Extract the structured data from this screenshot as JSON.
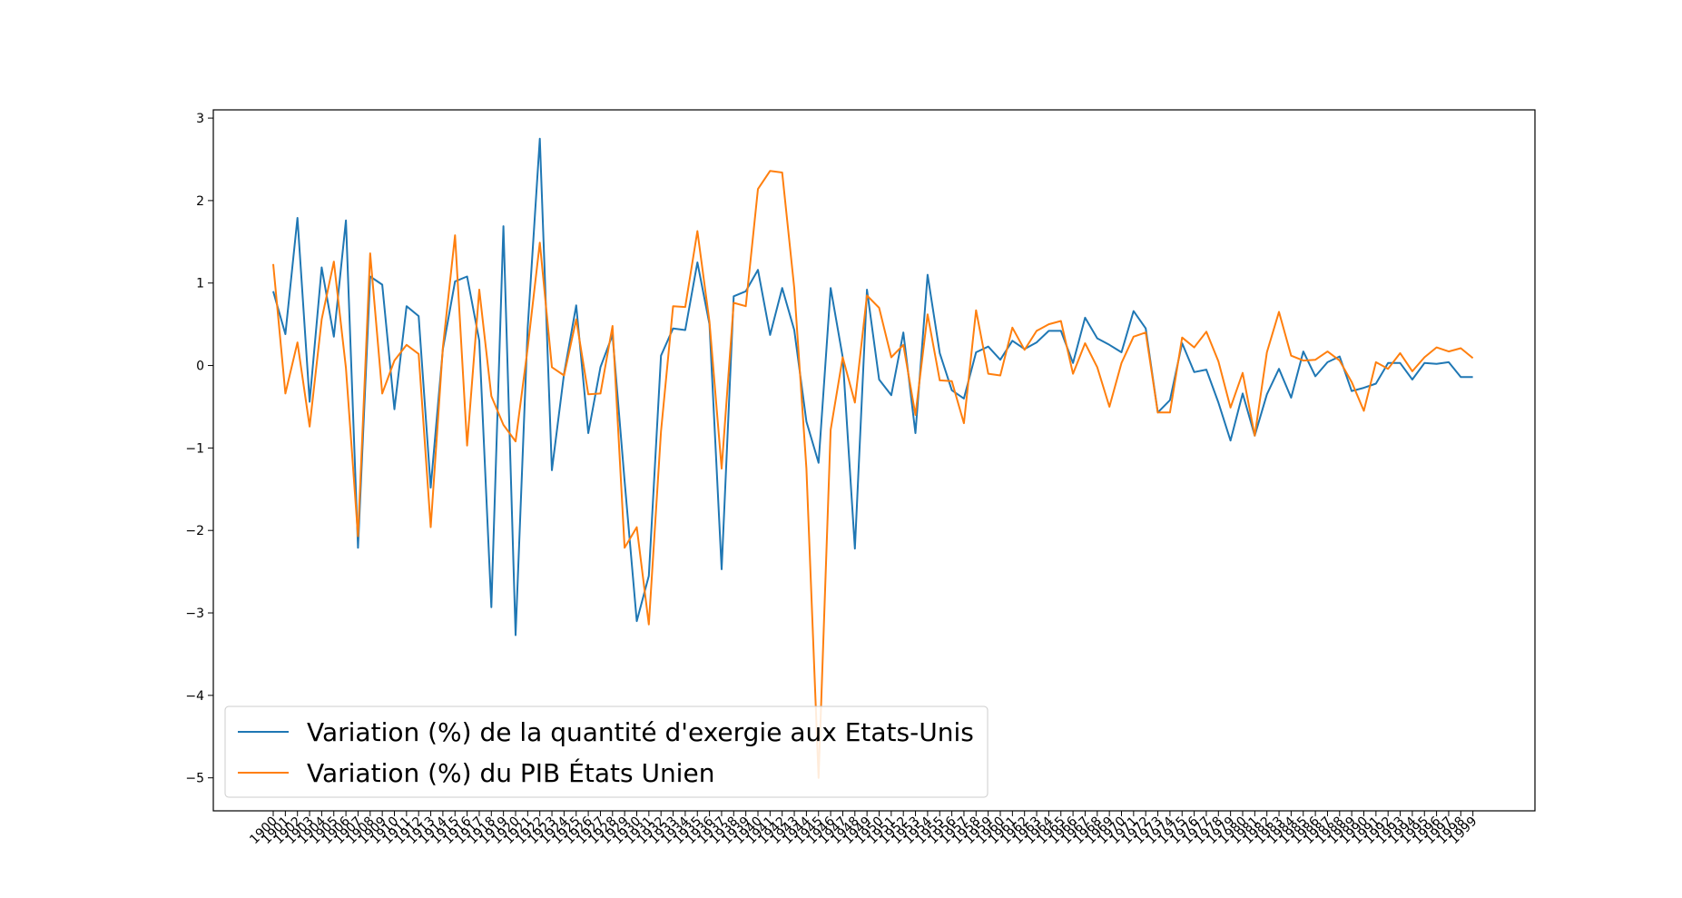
{
  "chart_data": {
    "type": "line",
    "title": "",
    "xlabel": "",
    "ylabel": "",
    "ylim": [
      -5.4,
      3.1
    ],
    "yticks": [
      3,
      2,
      1,
      0,
      -1,
      -2,
      -3,
      -4,
      -5
    ],
    "grid": false,
    "legend_position": "lower-left",
    "x": [
      "1900",
      "1901",
      "1902",
      "1903",
      "1904",
      "1905",
      "1906",
      "1907",
      "1908",
      "1909",
      "1910",
      "1911",
      "1912",
      "1913",
      "1914",
      "1915",
      "1916",
      "1917",
      "1918",
      "1919",
      "1920",
      "1921",
      "1922",
      "1923",
      "1924",
      "1925",
      "1926",
      "1927",
      "1928",
      "1929",
      "1930",
      "1931",
      "1932",
      "1933",
      "1934",
      "1935",
      "1936",
      "1937",
      "1938",
      "1939",
      "1940",
      "1941",
      "1942",
      "1943",
      "1944",
      "1945",
      "1946",
      "1947",
      "1948",
      "1949",
      "1950",
      "1951",
      "1952",
      "1953",
      "1954",
      "1955",
      "1956",
      "1957",
      "1958",
      "1959",
      "1960",
      "1961",
      "1962",
      "1963",
      "1964",
      "1965",
      "1966",
      "1967",
      "1968",
      "1969",
      "1970",
      "1971",
      "1972",
      "1973",
      "1974",
      "1975",
      "1976",
      "1977",
      "1978",
      "1979",
      "1980",
      "1981",
      "1982",
      "1983",
      "1984",
      "1985",
      "1986",
      "1987",
      "1988",
      "1989",
      "1990",
      "1991",
      "1992",
      "1993",
      "1994",
      "1995",
      "1996",
      "1997",
      "1998",
      "1999"
    ],
    "series": [
      {
        "name": "Variation (%) de la quantité d'exergie aux Etats-Unis",
        "color": "#1f77b4",
        "values": [
          0.9,
          0.38,
          1.79,
          -0.44,
          1.19,
          0.35,
          1.76,
          -2.21,
          1.08,
          0.98,
          -0.53,
          0.72,
          0.6,
          -1.48,
          0.2,
          1.02,
          1.08,
          0.3,
          -2.93,
          1.69,
          -3.27,
          0.45,
          2.75,
          -1.27,
          -0.1,
          0.73,
          -0.82,
          -0.02,
          0.37,
          -1.4,
          -3.1,
          -2.55,
          0.12,
          0.45,
          0.43,
          1.25,
          0.5,
          -2.47,
          0.84,
          0.9,
          1.16,
          0.37,
          0.94,
          0.43,
          -0.68,
          -1.18,
          0.94,
          0.1,
          -2.22,
          0.92,
          -0.17,
          -0.36,
          0.4,
          -0.82,
          1.1,
          0.15,
          -0.3,
          -0.4,
          0.16,
          0.23,
          0.07,
          0.3,
          0.2,
          0.28,
          0.42,
          0.42,
          0.03,
          0.58,
          0.33,
          0.25,
          0.16,
          0.66,
          0.45,
          -0.57,
          -0.42,
          0.27,
          -0.08,
          -0.05,
          -0.45,
          -0.91,
          -0.34,
          -0.85,
          -0.35,
          -0.04,
          -0.39,
          0.17,
          -0.13,
          0.04,
          0.11,
          -0.31,
          -0.27,
          -0.22,
          0.03,
          0.03,
          -0.17,
          0.03,
          0.02,
          0.04,
          -0.14,
          -0.14
        ]
      },
      {
        "name": "Variation (%) du PIB États Unien",
        "color": "#ff7f0e",
        "values": [
          1.23,
          -0.34,
          0.28,
          -0.74,
          0.56,
          1.26,
          -0.03,
          -2.07,
          1.36,
          -0.34,
          0.06,
          0.25,
          0.14,
          -1.96,
          0.22,
          1.58,
          -0.97,
          0.92,
          -0.37,
          -0.72,
          -0.92,
          0.21,
          1.49,
          -0.02,
          -0.12,
          0.56,
          -0.35,
          -0.34,
          0.48,
          -2.21,
          -1.96,
          -3.14,
          -0.8,
          0.72,
          0.71,
          1.63,
          0.53,
          -1.25,
          0.76,
          0.72,
          2.14,
          2.36,
          2.34,
          0.94,
          -1.25,
          -5.0,
          -0.78,
          0.1,
          -0.45,
          0.85,
          0.7,
          0.1,
          0.25,
          -0.6,
          0.62,
          -0.18,
          -0.19,
          -0.7,
          0.67,
          -0.1,
          -0.12,
          0.46,
          0.19,
          0.42,
          0.5,
          0.54,
          -0.1,
          0.27,
          -0.02,
          -0.5,
          0.03,
          0.35,
          0.4,
          -0.57,
          -0.57,
          0.34,
          0.22,
          0.41,
          0.05,
          -0.51,
          -0.09,
          -0.85,
          0.16,
          0.65,
          0.12,
          0.06,
          0.07,
          0.17,
          0.06,
          -0.2,
          -0.55,
          0.04,
          -0.04,
          0.15,
          -0.07,
          0.1,
          0.22,
          0.17,
          0.21,
          0.09
        ]
      }
    ]
  }
}
